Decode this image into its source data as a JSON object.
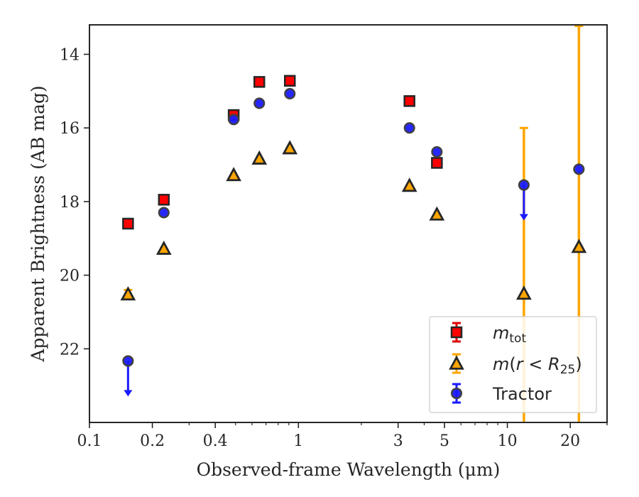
{
  "chart_data": {
    "type": "scatter",
    "xlabel": "Observed-frame Wavelength (μm)",
    "ylabel": "Apparent Brightness (AB mag)",
    "x_scale": "log",
    "y_inverted": true,
    "xlim": [
      0.1,
      30
    ],
    "ylim": [
      13.2,
      24.0
    ],
    "x_ticks": [
      {
        "value": 0.1,
        "label": "0.1"
      },
      {
        "value": 0.2,
        "label": "0.2"
      },
      {
        "value": 0.4,
        "label": "0.4"
      },
      {
        "value": 1,
        "label": "1"
      },
      {
        "value": 3,
        "label": "3"
      },
      {
        "value": 5,
        "label": "5"
      },
      {
        "value": 10,
        "label": "10"
      },
      {
        "value": 20,
        "label": "20"
      }
    ],
    "y_ticks": [
      {
        "value": 14,
        "label": "14"
      },
      {
        "value": 16,
        "label": "16"
      },
      {
        "value": 18,
        "label": "18"
      },
      {
        "value": 20,
        "label": "20"
      },
      {
        "value": 22,
        "label": "22"
      }
    ],
    "grid": false,
    "legend_position": "bottom-right",
    "series": [
      {
        "name": "m_tot",
        "marker": "square",
        "color": "#ff0000",
        "edge_color": "#262626",
        "error_color": "#e00000",
        "points": [
          {
            "x": 0.153,
            "y": 18.6
          },
          {
            "x": 0.227,
            "y": 17.95
          },
          {
            "x": 0.49,
            "y": 15.65
          },
          {
            "x": 0.65,
            "y": 14.75
          },
          {
            "x": 0.91,
            "y": 14.72
          },
          {
            "x": 3.4,
            "y": 15.27
          },
          {
            "x": 4.6,
            "y": 16.95
          }
        ]
      },
      {
        "name": "m(r<R25)",
        "marker": "triangle",
        "color": "#ffa500",
        "edge_color": "#262626",
        "error_color": "#ffa500",
        "points": [
          {
            "x": 0.153,
            "y": 20.52,
            "err": 0.12
          },
          {
            "x": 0.227,
            "y": 19.28
          },
          {
            "x": 0.49,
            "y": 17.28
          },
          {
            "x": 0.65,
            "y": 16.83
          },
          {
            "x": 0.91,
            "y": 16.55
          },
          {
            "x": 3.4,
            "y": 17.57
          },
          {
            "x": 4.6,
            "y": 18.35
          },
          {
            "x": 12.0,
            "y": 20.5,
            "err_low": 4.5,
            "err_high": 4.5
          },
          {
            "x": 22.0,
            "y": 19.23,
            "err_low": 6.0,
            "err_high": 6.0
          }
        ]
      },
      {
        "name": "Tractor",
        "marker": "circle",
        "color": "#1a1aff",
        "edge_color": "#404040",
        "error_color": "#1a1aff",
        "points": [
          {
            "x": 0.153,
            "y": 22.33,
            "upper_limit": true
          },
          {
            "x": 0.227,
            "y": 18.3
          },
          {
            "x": 0.49,
            "y": 15.77
          },
          {
            "x": 0.65,
            "y": 15.33
          },
          {
            "x": 0.91,
            "y": 15.07
          },
          {
            "x": 3.4,
            "y": 16.0
          },
          {
            "x": 4.6,
            "y": 16.65
          },
          {
            "x": 12.0,
            "y": 17.55,
            "upper_limit": true
          },
          {
            "x": 22.0,
            "y": 17.12
          }
        ]
      }
    ]
  }
}
